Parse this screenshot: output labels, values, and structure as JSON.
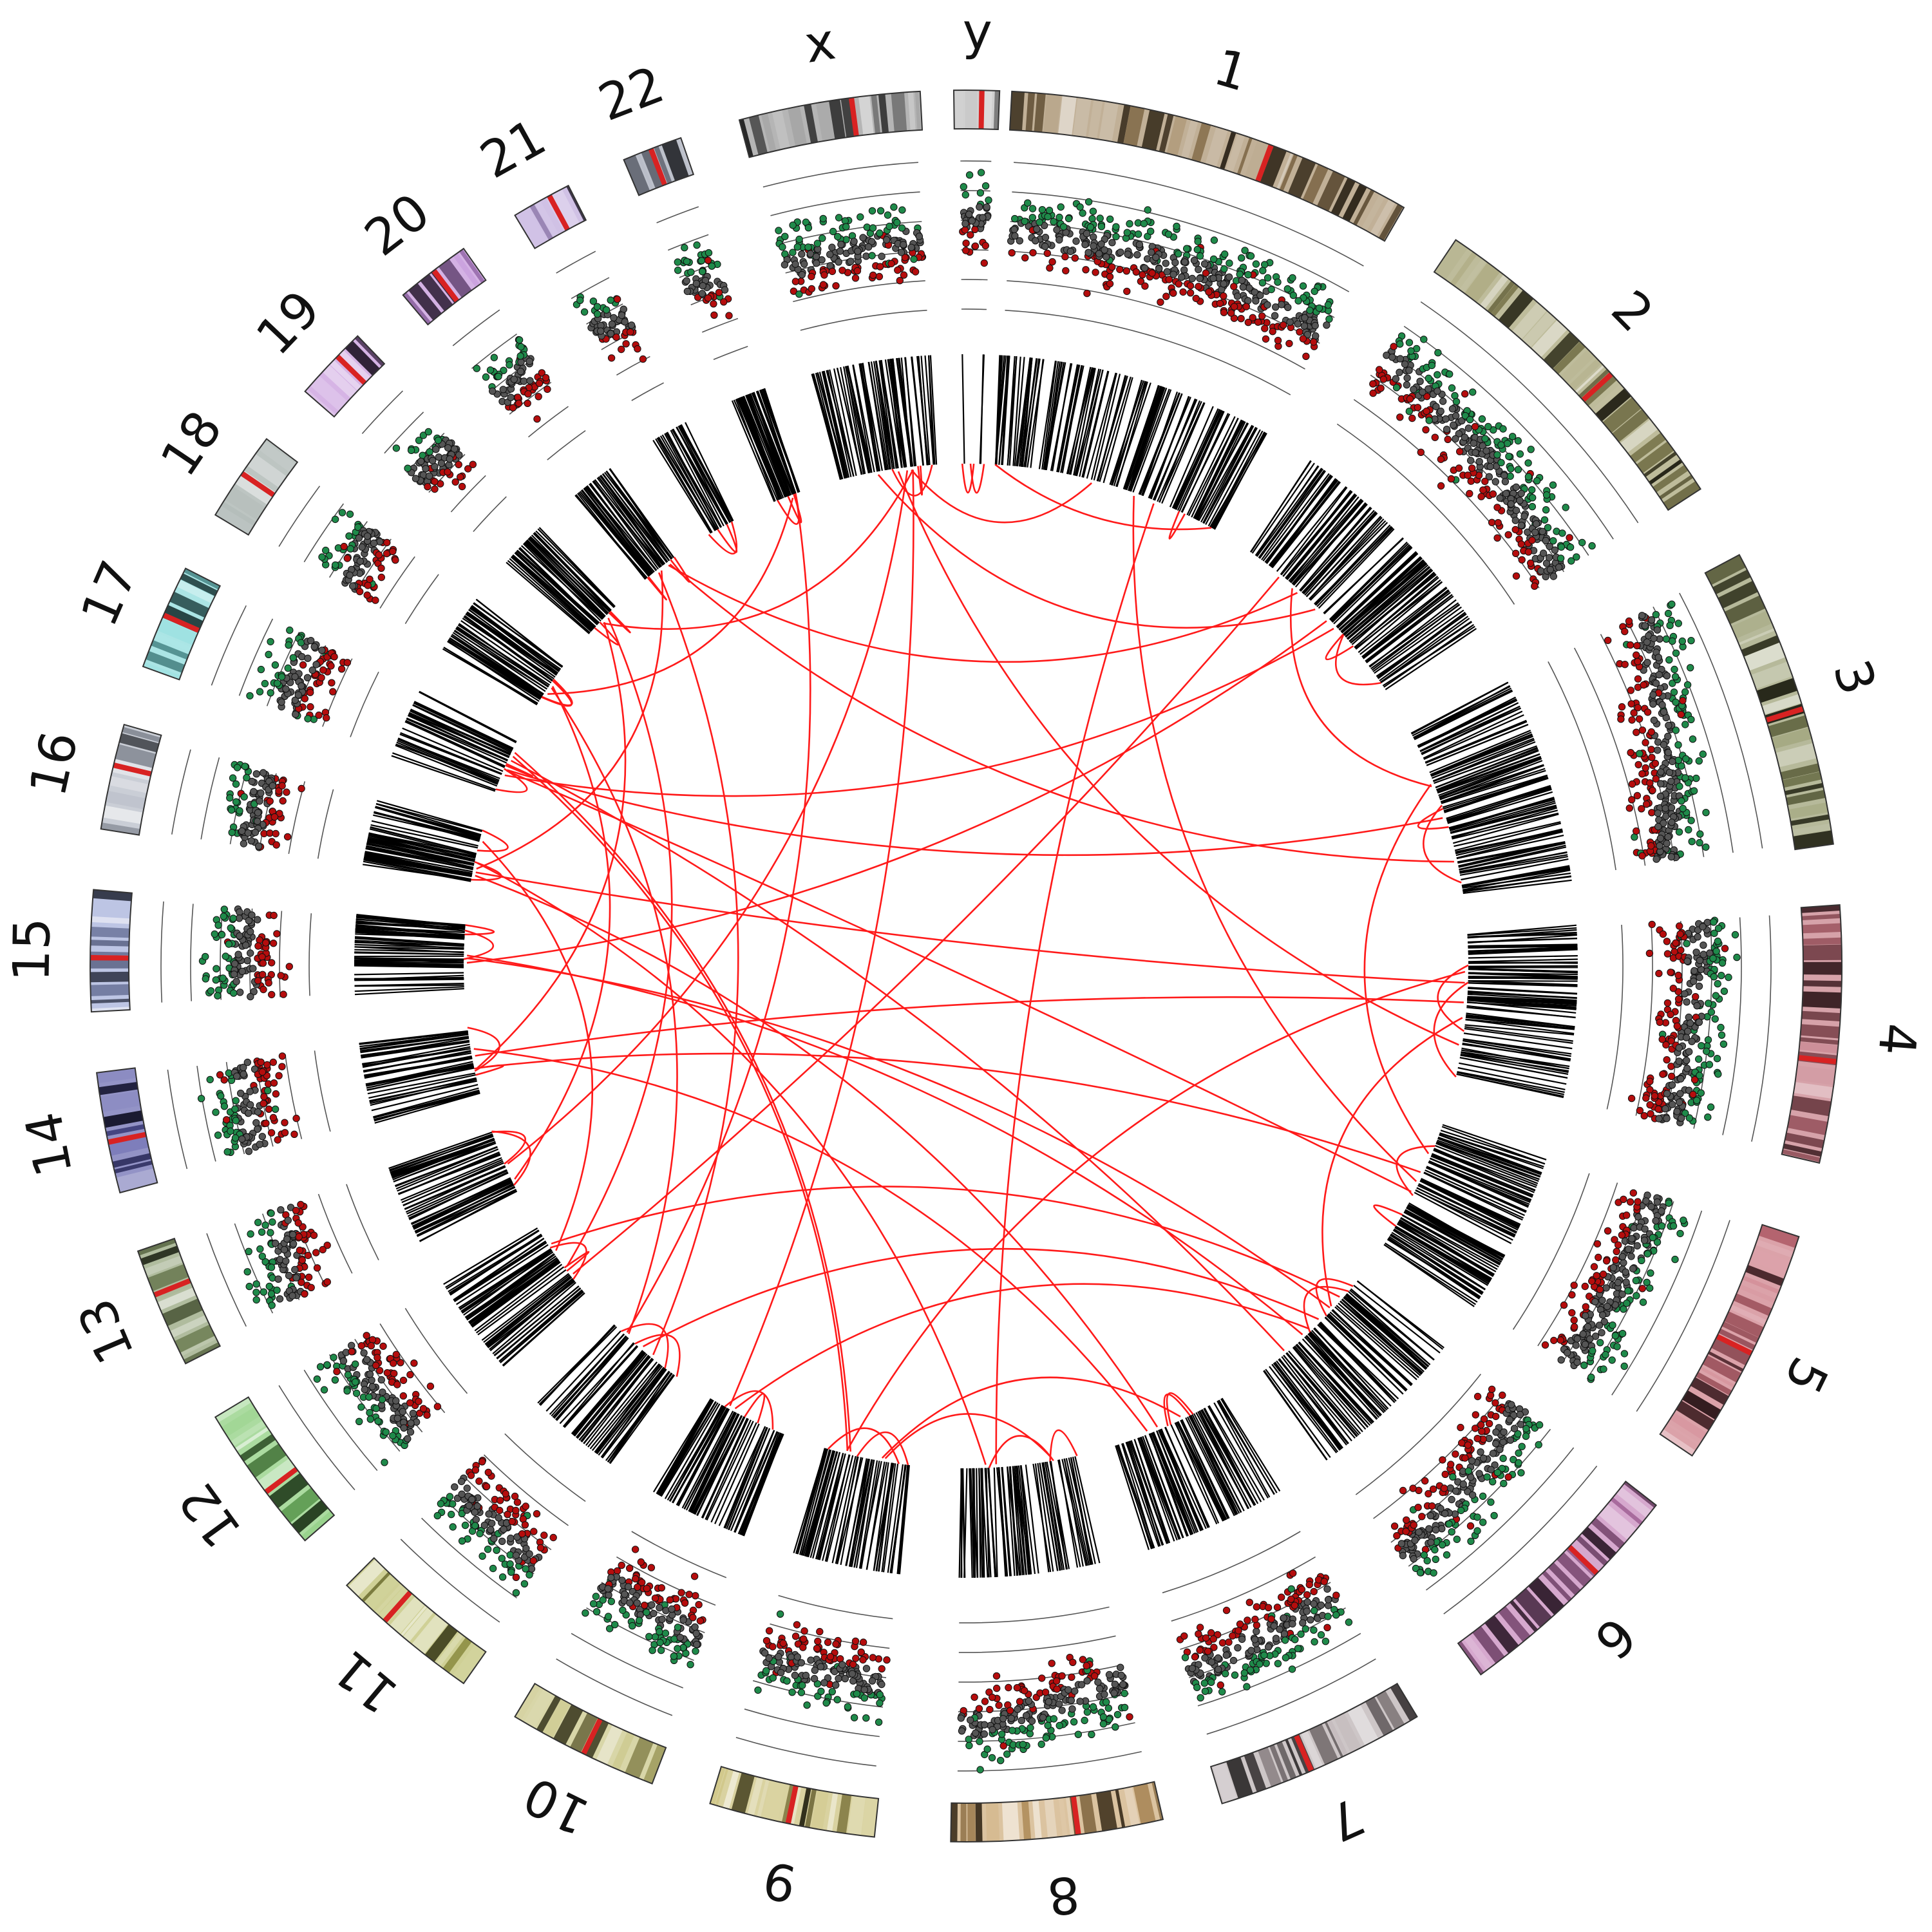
{
  "diagram": {
    "type": "circos",
    "chromosomes": [
      {
        "name": "1",
        "color": "#a08660",
        "cn": [
          0.55,
          0.5
        ]
      },
      {
        "name": "2",
        "color": "#9c9866",
        "cn": [
          0.6,
          0.35
        ]
      },
      {
        "name": "3",
        "color": "#8f9464",
        "cn": [
          0.75,
          0.35
        ]
      },
      {
        "name": "4",
        "color": "#c0707c",
        "cn": [
          0.55,
          0.45
        ]
      },
      {
        "name": "5",
        "color": "#c9707c",
        "cn": [
          0.5,
          0.45
        ]
      },
      {
        "name": "6",
        "color": "#c07ab4",
        "cn": [
          0.35,
          0.55
        ]
      },
      {
        "name": "7",
        "color": "#b3a8aa",
        "cn": [
          0.5,
          0.6
        ]
      },
      {
        "name": "8",
        "color": "#c9a46e",
        "cn": [
          0.5,
          0.75
        ]
      },
      {
        "name": "9",
        "color": "#c6bb6e",
        "cn": [
          0.45,
          0.45
        ]
      },
      {
        "name": "10",
        "color": "#c4c07a",
        "cn": [
          0.45,
          0.4
        ]
      },
      {
        "name": "11",
        "color": "#b6b85e",
        "cn": [
          0.55,
          0.5
        ]
      },
      {
        "name": "12",
        "color": "#7ec86e",
        "cn": [
          0.45,
          0.5
        ]
      },
      {
        "name": "13",
        "color": "#86986a",
        "cn": [
          0.7,
          0.45
        ]
      },
      {
        "name": "14",
        "color": "#5a5aa8",
        "cn": [
          0.55,
          0.5
        ]
      },
      {
        "name": "15",
        "color": "#9aa6d6",
        "cn": [
          0.45,
          0.45
        ]
      },
      {
        "name": "16",
        "color": "#aeb4c0",
        "cn": [
          0.5,
          0.5
        ]
      },
      {
        "name": "17",
        "color": "#7ed8d8",
        "cn": [
          0.5,
          0.5
        ]
      },
      {
        "name": "18",
        "color": "#9aa6a2",
        "cn": [
          0.5,
          0.55
        ]
      },
      {
        "name": "19",
        "color": "#c08cd8",
        "cn": [
          0.55,
          0.5
        ]
      },
      {
        "name": "20",
        "color": "#bd8ad6",
        "cn": [
          0.55,
          0.6
        ]
      },
      {
        "name": "21",
        "color": "#b8a0d8",
        "cn": [
          0.6,
          0.5
        ]
      },
      {
        "name": "22",
        "color": "#9aa0b0",
        "cn": [
          0.55,
          0.5
        ]
      },
      {
        "name": "x",
        "color": "#8e8e8e",
        "cn": [
          0.45,
          0.5
        ]
      },
      {
        "name": "y",
        "color": "#b8b8b8",
        "cn": [
          0.65,
          0.65
        ]
      }
    ],
    "track_colors": {
      "gain": "#1f8a4a",
      "neutral": "#555555",
      "loss": "#b50d0d",
      "link": "#ff1a1a",
      "intra": "#000000"
    },
    "links": [
      [
        "1",
        "x"
      ],
      [
        "1",
        "5"
      ],
      [
        "1",
        "8"
      ],
      [
        "2",
        "17"
      ],
      [
        "2",
        "12"
      ],
      [
        "2",
        "15"
      ],
      [
        "2",
        "x"
      ],
      [
        "2",
        "3"
      ],
      [
        "3",
        "17"
      ],
      [
        "3",
        "20"
      ],
      [
        "4",
        "16"
      ],
      [
        "4",
        "6"
      ],
      [
        "5",
        "14"
      ],
      [
        "5",
        "17"
      ],
      [
        "6",
        "17"
      ],
      [
        "6",
        "15"
      ],
      [
        "6",
        "11"
      ],
      [
        "6",
        "12"
      ],
      [
        "7",
        "9"
      ],
      [
        "7",
        "14"
      ],
      [
        "8",
        "16"
      ],
      [
        "8",
        "9"
      ],
      [
        "9",
        "17"
      ],
      [
        "9",
        "4"
      ],
      [
        "10",
        "x"
      ],
      [
        "11",
        "20"
      ],
      [
        "11",
        "22"
      ],
      [
        "11",
        "18"
      ],
      [
        "12",
        "16"
      ],
      [
        "13",
        "18"
      ],
      [
        "13",
        "x"
      ],
      [
        "14",
        "19"
      ],
      [
        "15",
        "6"
      ],
      [
        "16",
        "20"
      ],
      [
        "17",
        "9"
      ],
      [
        "18",
        "22"
      ],
      [
        "19",
        "x"
      ],
      [
        "20",
        "2"
      ],
      [
        "x",
        "4"
      ],
      [
        "16",
        "7"
      ],
      [
        "3",
        "5"
      ],
      [
        "12",
        "19"
      ],
      [
        "14",
        "4"
      ],
      [
        "10",
        "6"
      ]
    ]
  }
}
